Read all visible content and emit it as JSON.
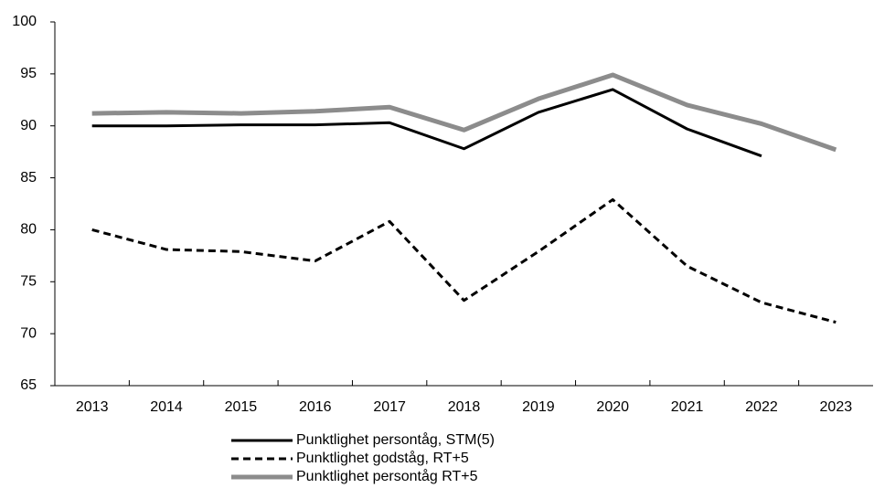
{
  "chart_data": {
    "type": "line",
    "categories": [
      "2013",
      "2014",
      "2015",
      "2016",
      "2017",
      "2018",
      "2019",
      "2020",
      "2021",
      "2022",
      "2023"
    ],
    "series": [
      {
        "name": "Punktlighet persontåg, STM(5)",
        "color": "#000000",
        "dash": false,
        "line_width": 3,
        "values": [
          90.0,
          90.0,
          90.1,
          90.1,
          90.3,
          87.8,
          91.3,
          93.5,
          89.7,
          87.1,
          null
        ]
      },
      {
        "name": "Punktlighet godståg, RT+5",
        "color": "#000000",
        "dash": true,
        "line_width": 3,
        "values": [
          80.0,
          78.1,
          77.9,
          77.0,
          80.8,
          73.2,
          77.9,
          82.9,
          76.5,
          73.0,
          71.1
        ]
      },
      {
        "name": "Punktlighet persontåg RT+5",
        "color": "#8c8c8c",
        "dash": false,
        "line_width": 5,
        "values": [
          91.2,
          91.3,
          91.2,
          91.4,
          91.8,
          89.6,
          92.6,
          94.9,
          92.0,
          90.2,
          87.7
        ]
      }
    ],
    "ylim": [
      65,
      100
    ],
    "yticks": [
      65,
      70,
      75,
      80,
      85,
      90,
      95,
      100
    ],
    "grid": false,
    "legend": "bottom"
  }
}
